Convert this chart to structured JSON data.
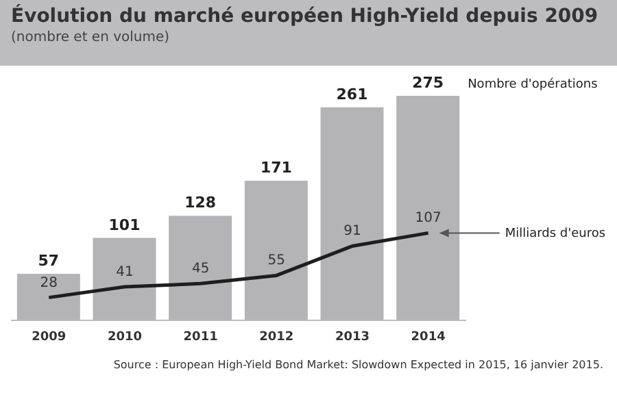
{
  "chart_data": {
    "type": "bar",
    "title": "Évolution du marché européen High-Yield depuis 2009",
    "subtitle": "(nombre et en volume)",
    "categories": [
      "2009",
      "2010",
      "2011",
      "2012",
      "2013",
      "2014"
    ],
    "series": [
      {
        "name": "Nombre d'opérations",
        "color": "#b4b4b6",
        "values": [
          57,
          101,
          128,
          171,
          261,
          275
        ]
      },
      {
        "name": "Milliards d'euros",
        "type": "line",
        "color": "#1e1e1e",
        "values": [
          28,
          41,
          45,
          55,
          91,
          107
        ]
      }
    ],
    "data_labels": true,
    "grid": false,
    "marker": "none",
    "line_style": "solid",
    "annotations": [
      "Source : European High-Yield Bond Market: Slowdown Expected in 2015, 16 janvier 2015."
    ]
  }
}
